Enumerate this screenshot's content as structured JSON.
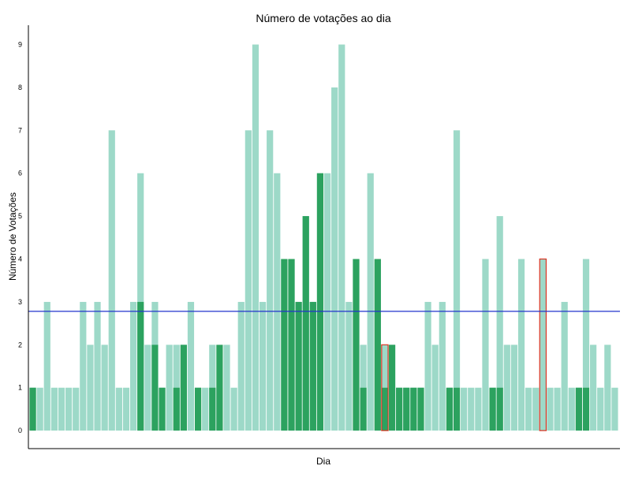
{
  "chart_data": {
    "type": "bar",
    "title": "Número de votações ao dia",
    "xlabel": "Dia",
    "ylabel": "Número de Votações",
    "ylim": [
      -0.42,
      9.45
    ],
    "yticks": [
      0,
      1,
      2,
      3,
      4,
      5,
      6,
      7,
      8,
      9
    ],
    "xticks_shown": false,
    "grid": false,
    "reference_line": {
      "value": 2.78,
      "color": "#2233cc"
    },
    "colors": {
      "light": "#9dd9c8",
      "dark": "#2ca25f",
      "highlight_outline": "#dd3322",
      "axis": "#000000"
    },
    "series": [
      {
        "values": [
          1,
          1,
          3,
          1,
          1,
          1,
          1,
          3,
          2,
          3,
          2,
          7,
          1,
          1,
          3,
          6,
          2,
          3,
          1,
          2,
          2,
          2,
          3,
          1,
          1,
          2,
          1,
          2,
          1,
          3,
          7,
          9,
          3,
          7,
          6,
          4,
          4,
          3,
          5,
          3,
          6,
          6,
          8,
          9,
          3,
          4,
          2,
          6,
          4,
          2,
          2,
          1,
          1,
          1,
          1,
          3,
          2,
          3,
          1,
          7,
          1,
          1,
          1,
          4,
          1,
          5,
          2,
          2,
          4,
          1,
          1,
          4,
          1,
          1,
          3,
          1,
          1,
          4,
          2,
          1,
          2,
          1
        ]
      },
      {
        "values": [
          1,
          0,
          0,
          0,
          0,
          0,
          0,
          0,
          0,
          0,
          0,
          0,
          0,
          0,
          0,
          3,
          0,
          2,
          1,
          0,
          1,
          2,
          0,
          1,
          0,
          1,
          2,
          0,
          0,
          0,
          0,
          0,
          0,
          0,
          0,
          4,
          4,
          3,
          5,
          3,
          6,
          0,
          0,
          0,
          0,
          4,
          1,
          0,
          4,
          1,
          2,
          1,
          1,
          1,
          1,
          0,
          0,
          0,
          1,
          1,
          0,
          0,
          0,
          0,
          1,
          1,
          0,
          0,
          0,
          0,
          0,
          0,
          0,
          0,
          0,
          0,
          1,
          1,
          0,
          0,
          0,
          0
        ]
      }
    ],
    "highlighted_indices": [
      49,
      71
    ]
  }
}
